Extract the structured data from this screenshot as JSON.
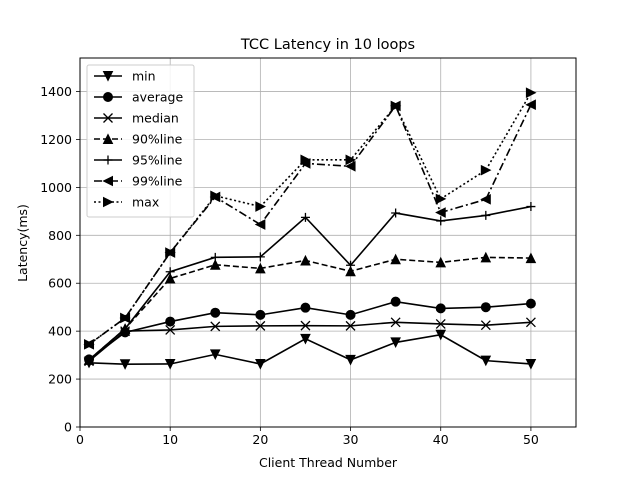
{
  "chart_data": {
    "type": "line",
    "title": "TCC Latency in 10 loops",
    "xlabel": "Client Thread Number",
    "ylabel": "Latency(ms)",
    "xlim": [
      0,
      55
    ],
    "ylim": [
      0,
      1540
    ],
    "xticks": [
      0,
      10,
      20,
      30,
      40,
      50
    ],
    "yticks": [
      0,
      200,
      400,
      600,
      800,
      1000,
      1200,
      1400
    ],
    "grid": true,
    "legend_position": "upper-left",
    "x": [
      1,
      5,
      10,
      15,
      20,
      25,
      30,
      35,
      40,
      45,
      50
    ],
    "series": [
      {
        "name": "min",
        "color": "#000000",
        "linestyle": "solid",
        "marker": "triangle-down",
        "values": [
          268,
          262,
          263,
          303,
          263,
          368,
          280,
          353,
          385,
          277,
          263
        ]
      },
      {
        "name": "average",
        "color": "#000000",
        "linestyle": "solid",
        "marker": "circle",
        "values": [
          282,
          395,
          440,
          477,
          468,
          498,
          468,
          523,
          495,
          500,
          515
        ]
      },
      {
        "name": "median",
        "color": "#000000",
        "linestyle": "solid",
        "marker": "x",
        "values": [
          275,
          400,
          405,
          420,
          422,
          423,
          422,
          437,
          430,
          425,
          437
        ]
      },
      {
        "name": "90%line",
        "color": "#000000",
        "linestyle": "dashed",
        "marker": "triangle-up",
        "values": [
          280,
          410,
          620,
          677,
          662,
          695,
          650,
          700,
          687,
          708,
          705
        ]
      },
      {
        "name": "95%line",
        "color": "#000000",
        "linestyle": "solid",
        "marker": "plus",
        "values": [
          280,
          410,
          648,
          708,
          710,
          875,
          675,
          893,
          860,
          883,
          920
        ]
      },
      {
        "name": "99%line",
        "color": "#000000",
        "linestyle": "dashdot",
        "marker": "triangle-left",
        "values": [
          345,
          455,
          728,
          960,
          845,
          1100,
          1088,
          1340,
          895,
          950,
          1345
        ]
      },
      {
        "name": "max",
        "color": "#000000",
        "linestyle": "dotted",
        "marker": "triangle-right",
        "values": [
          345,
          455,
          728,
          965,
          920,
          1115,
          1115,
          1340,
          952,
          1072,
          1395
        ]
      }
    ]
  }
}
